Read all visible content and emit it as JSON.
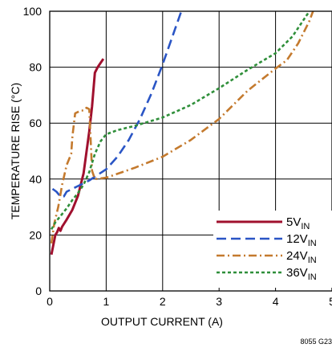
{
  "chart_data": {
    "type": "line",
    "title": "",
    "xlabel": "OUTPUT CURRENT (A)",
    "ylabel": "TEMPERATURE RISE (°C)",
    "xlim": [
      0,
      5
    ],
    "ylim": [
      0,
      100
    ],
    "xticks": [
      "0",
      "1",
      "2",
      "3",
      "4",
      "5"
    ],
    "yticks": [
      "0",
      "20",
      "40",
      "60",
      "80",
      "100"
    ],
    "grid": true,
    "legend_position": "bottom-right",
    "figure_id": "8055 G23",
    "series": [
      {
        "name": "5V",
        "name_subscript": "IN",
        "color": "#a0102e",
        "style": "solid",
        "x": [
          0.03,
          0.07,
          0.1,
          0.13,
          0.16,
          0.19,
          0.22,
          0.3,
          0.4,
          0.5,
          0.6,
          0.7,
          0.75,
          0.8,
          0.85,
          0.95
        ],
        "y": [
          13,
          17,
          20,
          21,
          22.5,
          21.5,
          23,
          25.5,
          29,
          34,
          42,
          57,
          66,
          78,
          80,
          83
        ]
      },
      {
        "name": "12V",
        "name_subscript": "IN",
        "color": "#2a55c5",
        "style": "dash",
        "x": [
          0.05,
          0.12,
          0.2,
          0.25,
          0.3,
          0.4,
          0.5,
          0.7,
          1.0,
          1.2,
          1.4,
          1.6,
          1.8,
          2.0,
          2.2,
          2.4
        ],
        "y": [
          36.5,
          35.5,
          33.5,
          33.8,
          35.5,
          36.5,
          37.5,
          39.5,
          43.5,
          48,
          54,
          61.5,
          70.5,
          81,
          92.5,
          104
        ]
      },
      {
        "name": "24V",
        "name_subscript": "IN",
        "color": "#c47a2e",
        "style": "dashdot",
        "x": [
          0.03,
          0.08,
          0.15,
          0.22,
          0.3,
          0.38,
          0.4,
          0.45,
          0.5,
          0.55,
          0.6,
          0.65,
          0.7,
          0.75,
          0.8,
          1.0,
          1.5,
          2.0,
          2.5,
          3.0,
          3.5,
          4.0,
          4.2,
          4.4,
          4.6,
          4.7
        ],
        "y": [
          17,
          24,
          30,
          38,
          45,
          49,
          55,
          63.5,
          64,
          64.5,
          64.5,
          65.5,
          65,
          43,
          40,
          40.5,
          44,
          48,
          54,
          61.5,
          71.5,
          79.5,
          82.5,
          88.5,
          96.5,
          102
        ]
      },
      {
        "name": "36V",
        "name_subscript": "IN",
        "color": "#2f8f3a",
        "style": "dot",
        "x": [
          0.03,
          0.1,
          0.2,
          0.3,
          0.4,
          0.5,
          0.6,
          0.7,
          0.8,
          0.9,
          1.0,
          1.2,
          1.5,
          2.0,
          2.5,
          3.0,
          3.5,
          4.0,
          4.3,
          4.6
        ],
        "y": [
          22,
          24.5,
          27,
          29.5,
          32.5,
          35,
          38,
          42.5,
          49,
          53.5,
          56,
          57.5,
          59,
          62,
          66.5,
          72.5,
          79,
          85,
          91,
          100
        ]
      }
    ]
  }
}
